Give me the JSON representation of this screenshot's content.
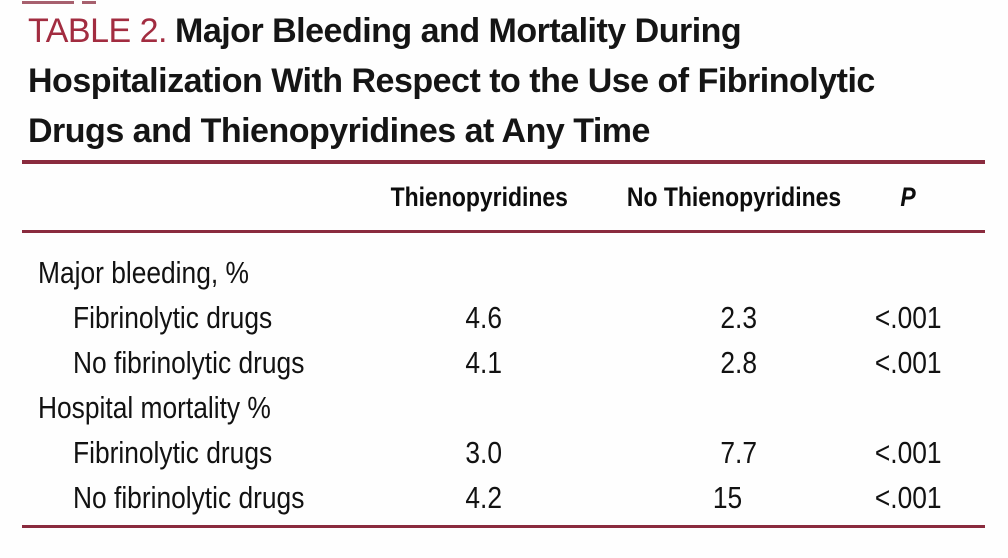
{
  "title": {
    "label": "TABLE 2.",
    "lines": [
      "Major Bleeding and Mortality During",
      "Hospitalization With Respect to the Use of Fibrinolytic",
      "Drugs and Thienopyridines at Any Time"
    ]
  },
  "table": {
    "columns": {
      "label": "",
      "thieno": "Thienopyridines",
      "no_thieno": "No Thienopyridines",
      "p": "P"
    },
    "rows": [
      {
        "label": "Major bleeding, %",
        "thieno": "",
        "no_thieno": "",
        "p": ""
      },
      {
        "label": "Fibrinolytic drugs",
        "thieno": "4.6",
        "no_thieno": "2.3",
        "p": "<.001"
      },
      {
        "label": "No fibrinolytic drugs",
        "thieno": "4.1",
        "no_thieno": "2.8",
        "p": "<.001"
      },
      {
        "label": "Hospital mortality %",
        "thieno": "",
        "no_thieno": "",
        "p": ""
      },
      {
        "label": "Fibrinolytic drugs",
        "thieno": "3.0",
        "no_thieno": "7.7",
        "p": "<.001"
      },
      {
        "label": "No fibrinolytic drugs",
        "thieno": "4.2",
        "no_thieno": "15",
        "p": "<.001"
      }
    ]
  },
  "colors": {
    "accent_title": "#a22c40",
    "rule": "#8a2b3e",
    "text": "#121212",
    "background": "#fefefe"
  }
}
